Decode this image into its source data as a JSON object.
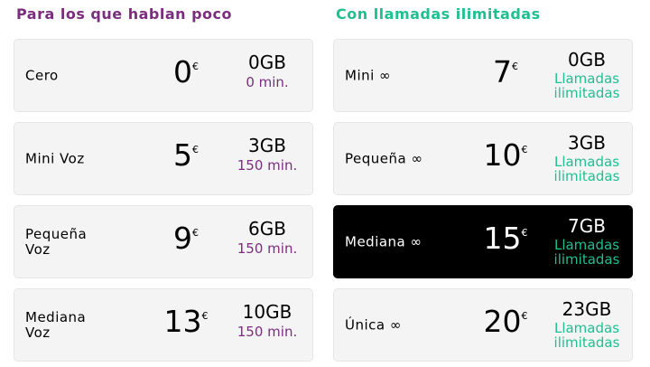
{
  "colors": {
    "purple": "#7b2d7e",
    "green": "#1fbf8f"
  },
  "left": {
    "title": "Para los que hablan poco",
    "plans": [
      {
        "name": "Cero",
        "price": "0",
        "currency": "€",
        "data": "0GB",
        "minutes": "0 min."
      },
      {
        "name": "Mini Voz",
        "price": "5",
        "currency": "€",
        "data": "3GB",
        "minutes": "150 min."
      },
      {
        "name": "Pequeña Voz",
        "price": "9",
        "currency": "€",
        "data": "6GB",
        "minutes": "150 min."
      },
      {
        "name": "Mediana Voz",
        "price": "13",
        "currency": "€",
        "data": "10GB",
        "minutes": "150 min."
      }
    ]
  },
  "right": {
    "title": "Con llamadas ilimitadas",
    "plans": [
      {
        "name": "Mini ∞",
        "price": "7",
        "currency": "€",
        "data": "0GB",
        "minutes": "Llamadas ilimitadas"
      },
      {
        "name": "Pequeña ∞",
        "price": "10",
        "currency": "€",
        "data": "3GB",
        "minutes": "Llamadas ilimitadas"
      },
      {
        "name": "Mediana ∞",
        "price": "15",
        "currency": "€",
        "data": "7GB",
        "minutes": "Llamadas ilimitadas",
        "highlighted": true
      },
      {
        "name": "Única ∞",
        "price": "20",
        "currency": "€",
        "data": "23GB",
        "minutes": "Llamadas ilimitadas"
      }
    ]
  }
}
